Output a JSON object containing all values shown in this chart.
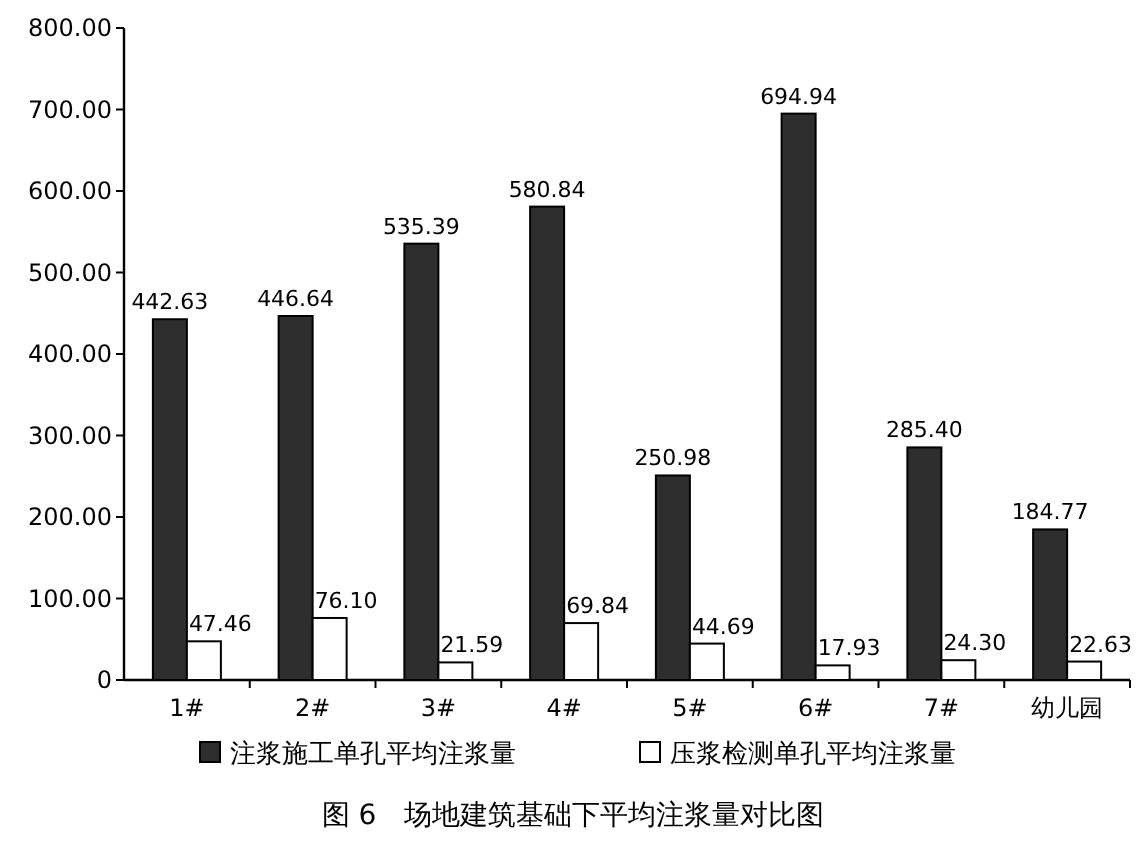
{
  "chart_data": {
    "type": "bar",
    "title": "图 6　场地建筑基础下平均注浆量对比图",
    "categories": [
      "1#",
      "2#",
      "3#",
      "4#",
      "5#",
      "6#",
      "7#",
      "幼儿园"
    ],
    "series": [
      {
        "name": "注浆施工单孔平均注浆量",
        "color": "#2e2e2e",
        "values": [
          442.63,
          446.64,
          535.39,
          580.84,
          250.98,
          694.94,
          285.4,
          184.77
        ],
        "value_labels": [
          "442.63",
          "446.64",
          "535.39",
          "580.84",
          "250.98",
          "694.94",
          "285.40",
          "184.77"
        ]
      },
      {
        "name": "压浆检测单孔平均注浆量",
        "color": "#ffffff",
        "values": [
          47.46,
          76.1,
          21.59,
          69.84,
          44.69,
          17.93,
          24.3,
          22.63
        ],
        "value_labels": [
          "47.46",
          "76.10",
          "21.59",
          "69.84",
          "44.69",
          "17.93",
          "24.30",
          "22.63"
        ]
      }
    ],
    "ylim": [
      0,
      800
    ],
    "yticks": [
      0,
      {
        "value": 100,
        "label": "100.00"
      },
      {
        "value": 200,
        "label": "200.00"
      },
      {
        "value": 300,
        "label": "300.00"
      },
      {
        "value": 400,
        "label": "400.00"
      },
      {
        "value": 500,
        "label": "500.00"
      },
      {
        "value": 600,
        "label": "600.00"
      },
      {
        "value": 700,
        "label": "700.00"
      },
      {
        "value": 800,
        "label": "800.00"
      }
    ],
    "legend": "bottom"
  }
}
